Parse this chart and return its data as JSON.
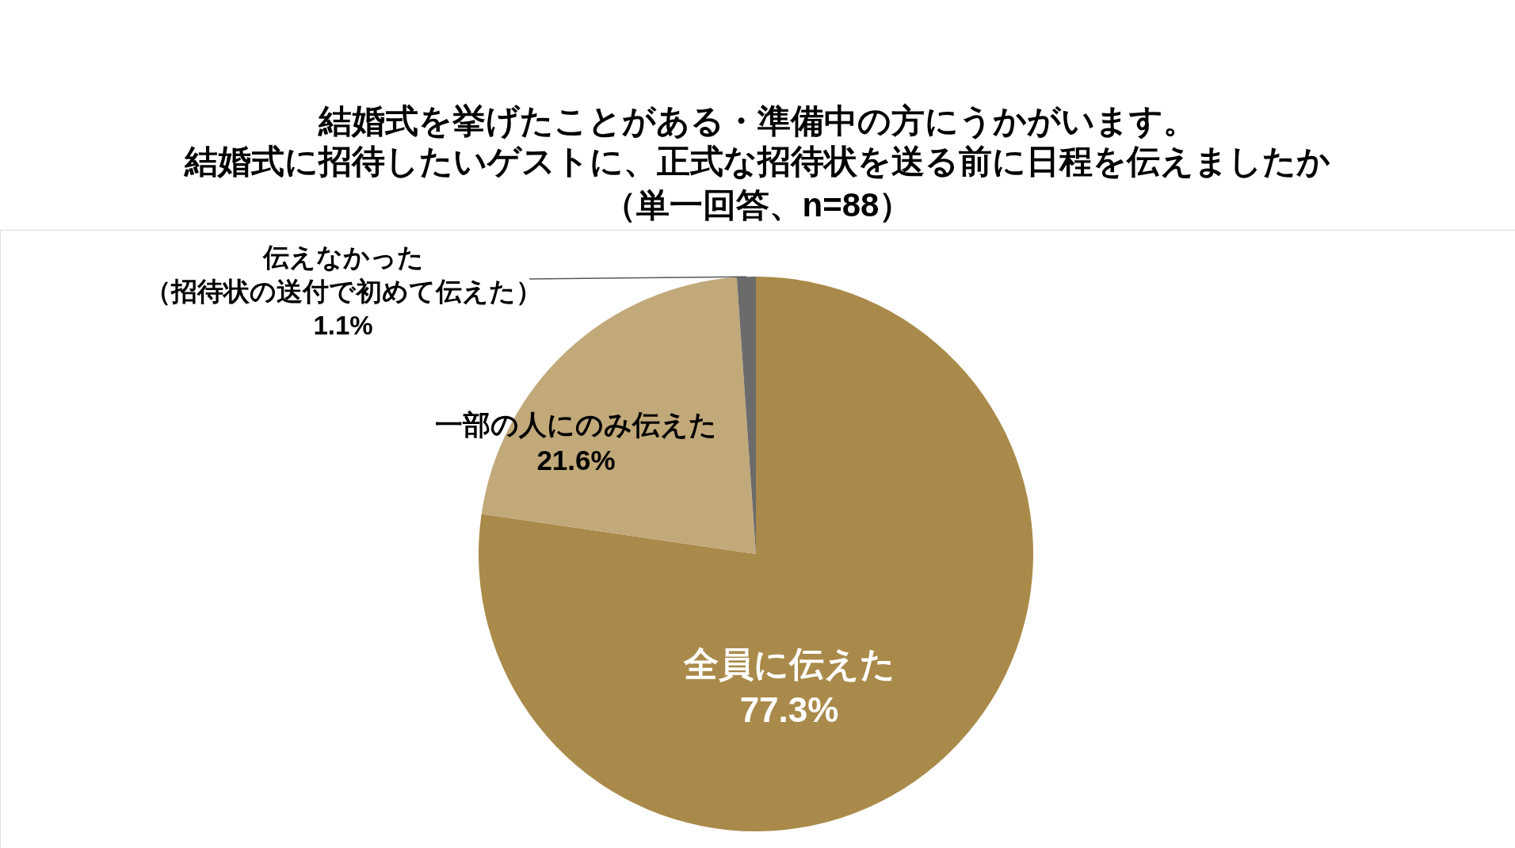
{
  "chart_data": {
    "type": "pie",
    "title": "結婚式を挙げたことがある・準備中の方にうかがいます。結婚式に招待したいゲストに、正式な招待状を送る前に日程を伝えましたか",
    "subtitle": "（単一回答、n=88）",
    "categories": [
      "全員に伝えた",
      "一部の人にのみ伝えた",
      "伝えなかった（招待状の送付で初めて伝えた）"
    ],
    "values": [
      77.3,
      21.6,
      1.1
    ],
    "value_labels": [
      "77.3%",
      "21.6%",
      "1.1%"
    ],
    "colors": [
      "#aa8a4a",
      "#c2a97a",
      "#6b6b6b"
    ]
  }
}
